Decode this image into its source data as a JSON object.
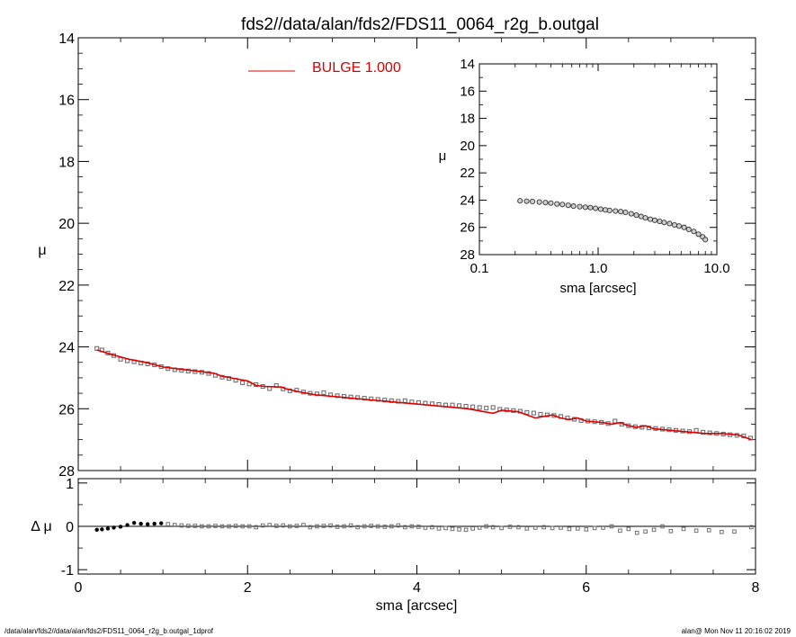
{
  "page": {
    "title": "fds2//data/alan/fds2/FDS11_0064_r2g_b.outgal",
    "footer_left": "/data/alan/fds2//data/alan/fds2/FDS11_0064_r2g_b.outgal_1dprof",
    "footer_right": "alan@  Mon Nov 11 20:16:02 2019"
  },
  "colors": {
    "model": "#dd0000",
    "data": "#707070",
    "axes": "#000000"
  },
  "chart_data": [
    {
      "id": "main",
      "type": "scatter",
      "title": "fds2//data/alan/fds2/FDS11_0064_r2g_b.outgal",
      "xlabel": "",
      "ylabel": "μ",
      "xlim": [
        0,
        8
      ],
      "ylim": [
        28,
        14
      ],
      "y_inverted": true,
      "xticks": [
        0,
        2,
        4,
        6,
        8
      ],
      "xtick_labels_shown": false,
      "yticks": [
        14,
        16,
        18,
        20,
        22,
        24,
        26,
        28
      ],
      "ytick_labels": [
        "14",
        "16",
        "18",
        "20",
        "22",
        "24",
        "26",
        "28"
      ],
      "legend": {
        "label": "BULGE",
        "value": "1.000",
        "placement": "top-center"
      },
      "series": [
        {
          "name": "data",
          "kind": "points",
          "x": [
            0.22,
            0.28,
            0.35,
            0.42,
            0.5,
            0.58,
            0.66,
            0.74,
            0.82,
            0.9,
            0.98,
            1.06,
            1.14,
            1.22,
            1.3,
            1.38,
            1.46,
            1.54,
            1.62,
            1.7,
            1.78,
            1.86,
            1.94,
            2.02,
            2.1,
            2.18,
            2.26,
            2.34,
            2.42,
            2.5,
            2.58,
            2.66,
            2.74,
            2.82,
            2.9,
            2.98,
            3.06,
            3.14,
            3.22,
            3.3,
            3.38,
            3.46,
            3.54,
            3.62,
            3.7,
            3.78,
            3.86,
            3.94,
            4.02,
            4.1,
            4.18,
            4.26,
            4.34,
            4.42,
            4.5,
            4.58,
            4.66,
            4.74,
            4.82,
            4.9,
            4.98,
            5.06,
            5.14,
            5.22,
            5.3,
            5.38,
            5.46,
            5.54,
            5.62,
            5.7,
            5.78,
            5.86,
            5.94,
            6.02,
            6.1,
            6.18,
            6.26,
            6.34,
            6.42,
            6.5,
            6.58,
            6.66,
            6.74,
            6.82,
            6.9,
            6.98,
            7.06,
            7.14,
            7.22,
            7.3,
            7.38,
            7.46,
            7.54,
            7.62,
            7.7,
            7.78,
            7.86,
            7.94
          ],
          "y": [
            24.05,
            24.1,
            24.2,
            24.28,
            24.4,
            24.45,
            24.48,
            24.52,
            24.55,
            24.58,
            24.64,
            24.7,
            24.74,
            24.76,
            24.78,
            24.8,
            24.82,
            24.86,
            24.92,
            24.98,
            25.02,
            25.08,
            25.16,
            25.2,
            25.22,
            25.28,
            25.35,
            25.25,
            25.36,
            25.42,
            25.4,
            25.46,
            25.5,
            25.52,
            25.48,
            25.55,
            25.58,
            25.6,
            25.62,
            25.64,
            25.66,
            25.68,
            25.7,
            25.72,
            25.74,
            25.76,
            25.74,
            25.78,
            25.8,
            25.82,
            25.84,
            25.86,
            25.88,
            25.88,
            25.9,
            25.92,
            25.94,
            25.96,
            25.98,
            25.96,
            26.02,
            26.04,
            26.06,
            26.08,
            26.12,
            26.14,
            26.18,
            26.2,
            26.22,
            26.25,
            26.3,
            26.34,
            26.38,
            26.4,
            26.42,
            26.44,
            26.48,
            26.4,
            26.5,
            26.55,
            26.58,
            26.6,
            26.62,
            26.64,
            26.66,
            26.68,
            26.7,
            26.72,
            26.74,
            26.7,
            26.76,
            26.78,
            26.8,
            26.82,
            26.84,
            26.86,
            26.88,
            26.95
          ]
        },
        {
          "name": "BULGE",
          "kind": "line",
          "x": [
            0.22,
            0.4,
            0.6,
            0.8,
            1.0,
            1.2,
            1.4,
            1.6,
            1.7,
            1.8,
            2.0,
            2.1,
            2.2,
            2.4,
            2.45,
            2.6,
            2.8,
            3.0,
            3.2,
            3.4,
            3.6,
            3.8,
            4.0,
            4.2,
            4.4,
            4.6,
            4.8,
            4.9,
            5.0,
            5.2,
            5.3,
            5.4,
            5.5,
            5.6,
            5.7,
            5.8,
            5.9,
            6.0,
            6.2,
            6.3,
            6.4,
            6.5,
            6.6,
            6.7,
            6.8,
            7.0,
            7.2,
            7.4,
            7.6,
            7.8,
            7.95
          ],
          "y": [
            24.1,
            24.25,
            24.4,
            24.5,
            24.65,
            24.72,
            24.78,
            24.85,
            24.95,
            25.0,
            25.1,
            25.25,
            25.28,
            25.3,
            25.35,
            25.45,
            25.55,
            25.6,
            25.65,
            25.7,
            25.75,
            25.8,
            25.85,
            25.9,
            25.95,
            26.0,
            26.1,
            26.15,
            26.05,
            26.1,
            26.2,
            26.3,
            26.25,
            26.2,
            26.3,
            26.35,
            26.3,
            26.4,
            26.45,
            26.5,
            26.45,
            26.55,
            26.6,
            26.55,
            26.65,
            26.7,
            26.75,
            26.8,
            26.8,
            26.85,
            27.0
          ]
        }
      ]
    },
    {
      "id": "residual",
      "type": "scatter",
      "xlabel": "sma [arcsec]",
      "ylabel": "Δ μ",
      "xlim": [
        0,
        8
      ],
      "ylim": [
        -1.1,
        1.1
      ],
      "xticks": [
        0,
        2,
        4,
        6,
        8
      ],
      "xtick_labels": [
        "0",
        "2",
        "4",
        "6",
        "8"
      ],
      "yticks": [
        -1,
        0,
        1
      ],
      "ytick_labels": [
        "-1",
        "0",
        "1"
      ],
      "zero_line": true,
      "series": [
        {
          "name": "residual",
          "kind": "points",
          "x": [
            0.22,
            0.28,
            0.35,
            0.42,
            0.5,
            0.58,
            0.66,
            0.74,
            0.82,
            0.9,
            0.98,
            1.06,
            1.14,
            1.22,
            1.3,
            1.38,
            1.46,
            1.54,
            1.62,
            1.7,
            1.78,
            1.86,
            1.94,
            2.02,
            2.1,
            2.18,
            2.26,
            2.34,
            2.42,
            2.5,
            2.58,
            2.66,
            2.74,
            2.82,
            2.9,
            2.98,
            3.06,
            3.14,
            3.22,
            3.3,
            3.38,
            3.46,
            3.54,
            3.62,
            3.7,
            3.78,
            3.86,
            3.94,
            4.02,
            4.1,
            4.18,
            4.26,
            4.34,
            4.42,
            4.5,
            4.58,
            4.66,
            4.74,
            4.82,
            4.9,
            5.0,
            5.1,
            5.2,
            5.3,
            5.4,
            5.5,
            5.6,
            5.7,
            5.8,
            5.9,
            6.0,
            6.1,
            6.2,
            6.3,
            6.4,
            6.5,
            6.6,
            6.7,
            6.8,
            6.9,
            7.0,
            7.15,
            7.3,
            7.45,
            7.6,
            7.75,
            7.95
          ],
          "y": [
            -0.08,
            -0.07,
            -0.05,
            -0.03,
            -0.01,
            0.03,
            0.08,
            0.06,
            0.05,
            0.06,
            0.07,
            0.05,
            0.03,
            0.02,
            0.01,
            0.01,
            0.0,
            0.0,
            0.01,
            0.0,
            0.0,
            0.01,
            0.0,
            0.0,
            -0.02,
            0.02,
            0.03,
            0.01,
            0.02,
            0.0,
            0.01,
            0.03,
            -0.02,
            0.0,
            0.01,
            0.02,
            -0.01,
            0.0,
            0.02,
            -0.02,
            0.0,
            0.01,
            0.0,
            -0.01,
            0.0,
            0.02,
            -0.02,
            0.0,
            -0.01,
            -0.03,
            -0.02,
            -0.05,
            -0.04,
            -0.06,
            -0.07,
            -0.08,
            -0.05,
            -0.03,
            0.0,
            -0.02,
            -0.04,
            -0.01,
            -0.02,
            -0.05,
            -0.03,
            -0.02,
            -0.04,
            -0.03,
            -0.06,
            -0.05,
            -0.07,
            -0.04,
            -0.03,
            0.0,
            -0.1,
            -0.06,
            -0.15,
            -0.12,
            -0.08,
            0.0,
            -0.11,
            -0.06,
            -0.1,
            -0.09,
            -0.13,
            -0.12,
            -0.02
          ]
        }
      ]
    },
    {
      "id": "inset",
      "type": "scatter",
      "xlabel": "sma [arcsec]",
      "ylabel": "μ",
      "xscale": "log",
      "xlim": [
        0.1,
        10.0
      ],
      "ylim": [
        28,
        14
      ],
      "y_inverted": true,
      "xticks": [
        0.1,
        1.0,
        10.0
      ],
      "xtick_labels": [
        "0.1",
        "1.0",
        "10.0"
      ],
      "yticks": [
        14,
        16,
        18,
        20,
        22,
        24,
        26,
        28
      ],
      "ytick_labels": [
        "14",
        "16",
        "18",
        "20",
        "22",
        "24",
        "26",
        "28"
      ],
      "series": [
        {
          "name": "data",
          "kind": "points",
          "x": [
            0.22,
            0.25,
            0.28,
            0.32,
            0.36,
            0.4,
            0.45,
            0.5,
            0.56,
            0.62,
            0.7,
            0.78,
            0.86,
            0.95,
            1.05,
            1.15,
            1.25,
            1.4,
            1.55,
            1.7,
            1.9,
            2.1,
            2.3,
            2.5,
            2.75,
            3.0,
            3.3,
            3.6,
            4.0,
            4.4,
            4.8,
            5.3,
            5.8,
            6.4,
            7.0,
            7.6,
            8.0
          ],
          "y": [
            24.05,
            24.08,
            24.1,
            24.14,
            24.18,
            24.22,
            24.28,
            24.32,
            24.38,
            24.44,
            24.48,
            24.52,
            24.55,
            24.6,
            24.66,
            24.72,
            24.76,
            24.8,
            24.84,
            24.9,
            25.0,
            25.1,
            25.2,
            25.3,
            25.4,
            25.48,
            25.56,
            25.64,
            25.72,
            25.82,
            25.9,
            26.0,
            26.15,
            26.3,
            26.5,
            26.7,
            26.9
          ]
        }
      ]
    }
  ]
}
